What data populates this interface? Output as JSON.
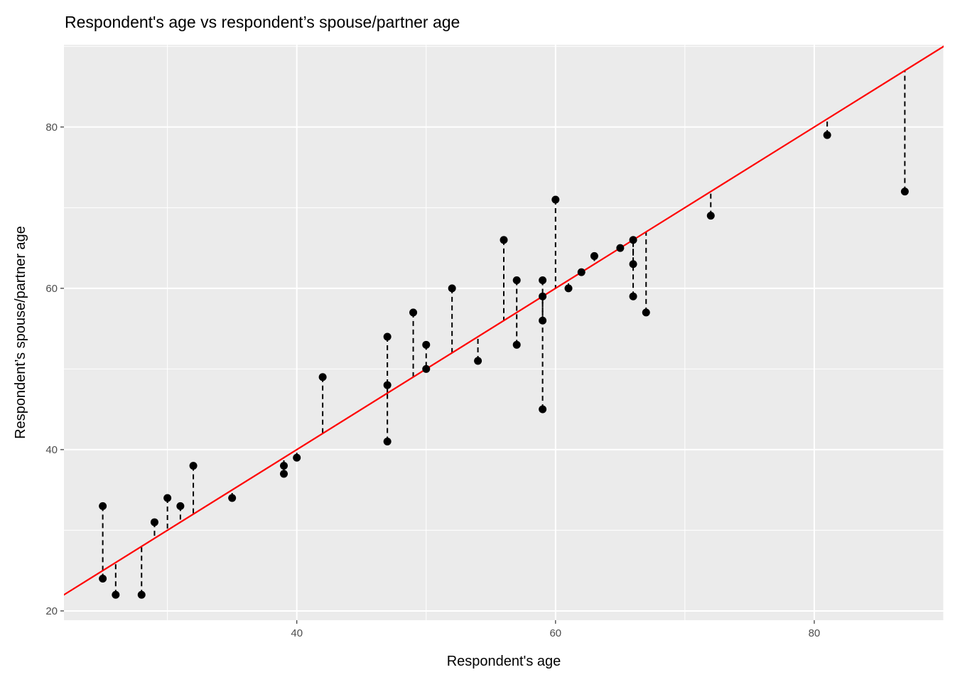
{
  "chart_data": {
    "type": "scatter",
    "title": "Respondent's age vs respondent’s spouse/partner age",
    "xlabel": "Respondent's age",
    "ylabel": "Respondent’s spouse/partner age",
    "xlim": [
      22,
      90
    ],
    "ylim": [
      18.85,
      90.2
    ],
    "x_ticks": [
      40,
      60,
      80
    ],
    "y_ticks": [
      20,
      40,
      60,
      80
    ],
    "x_minor": [
      30,
      50,
      70,
      90
    ],
    "y_minor": [
      30,
      50,
      70,
      90
    ],
    "grid": true,
    "reference_line": {
      "label": "y = x",
      "slope": 1,
      "intercept": 0,
      "color": "#ff0000"
    },
    "residual_segments": "dashed, from each point to the y = x line",
    "points": [
      [
        25,
        24
      ],
      [
        25,
        33
      ],
      [
        26,
        22
      ],
      [
        28,
        22
      ],
      [
        29,
        31
      ],
      [
        30,
        34
      ],
      [
        31,
        33
      ],
      [
        32,
        38
      ],
      [
        35,
        34
      ],
      [
        39,
        38
      ],
      [
        39,
        37
      ],
      [
        40,
        39
      ],
      [
        42,
        49
      ],
      [
        47,
        54
      ],
      [
        47,
        48
      ],
      [
        47,
        41
      ],
      [
        49,
        57
      ],
      [
        50,
        53
      ],
      [
        50,
        50
      ],
      [
        52,
        60
      ],
      [
        54,
        51
      ],
      [
        56,
        66
      ],
      [
        57,
        61
      ],
      [
        57,
        53
      ],
      [
        59,
        61
      ],
      [
        59,
        59
      ],
      [
        59,
        56
      ],
      [
        59,
        45
      ],
      [
        60,
        71
      ],
      [
        61,
        60
      ],
      [
        62,
        62
      ],
      [
        63,
        64
      ],
      [
        65,
        65
      ],
      [
        66,
        66
      ],
      [
        66,
        63
      ],
      [
        66,
        59
      ],
      [
        67,
        57
      ],
      [
        72,
        69
      ],
      [
        81,
        79
      ],
      [
        87,
        72
      ]
    ],
    "colors": {
      "panel": "#ebebeb",
      "grid": "#ffffff",
      "point": "#000000",
      "line": "#ff0000"
    }
  }
}
